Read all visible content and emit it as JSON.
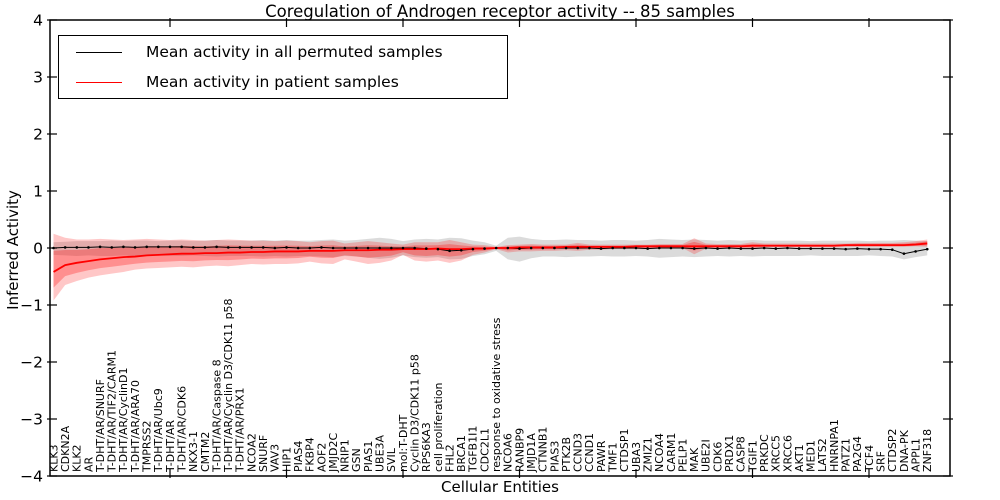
{
  "title": "Coregulation of Androgen receptor activity -- 85 samples",
  "legend": {
    "items": [
      {
        "label": "Mean activity in all permuted samples",
        "color": "#000000"
      },
      {
        "label": "Mean activity in patient samples",
        "color": "#ff0000"
      }
    ],
    "position": "upper left"
  },
  "axes": {
    "xlabel": "Cellular Entities",
    "ylabel": "Inferred Activity"
  },
  "chart_data": {
    "type": "line",
    "title": "Coregulation of Androgen receptor activity -- 85 samples",
    "xlabel": "Cellular Entities",
    "ylabel": "Inferred Activity",
    "ylim": [
      -4,
      4
    ],
    "yticks": [
      -4,
      -3,
      -2,
      -1,
      0,
      1,
      2,
      3,
      4
    ],
    "grid": false,
    "legend_position": "upper left",
    "categories": [
      "KLK3",
      "CDKN2A",
      "KLK2",
      "AR",
      "T-DHT/AR/SNURF",
      "T-DHT/AR/TIF2/CARM1",
      "T-DHT/AR/CyclinD1",
      "T-DHT/AR/ARA70",
      "TMPRSS2",
      "T-DHT/AR/Ubc9",
      "T-DHT/AR",
      "T-DHT/AR/CDK6",
      "NKX3-1",
      "CMTM2",
      "T-DHT/AR/Caspase 8",
      "T-DHT/AR/Cyclin D3/CDK11 p58",
      "T-DHT/AR/PRX1",
      "NCOA2",
      "SNURF",
      "VAV3",
      "HIP1",
      "PIAS4",
      "FKBP4",
      "AOF2",
      "JMJD2C",
      "NRIP1",
      "GSN",
      "PIAS1",
      "UBE3A",
      "SVIL",
      "mol:T-DHT",
      "Cyclin D3/CDK11 p58",
      "RPS6KA3",
      "cell proliferation",
      "FHL2",
      "BRCA1",
      "TGFB1I1",
      "CDC2L1",
      "response to oxidative stress",
      "NCOA6",
      "RANBP9",
      "JMJD1A",
      "CTNNB1",
      "PIAS3",
      "PTK2B",
      "CCND3",
      "CCND1",
      "PAWR",
      "TMF1",
      "CTDSP1",
      "UBA3",
      "ZMIZ1",
      "NCOA4",
      "CARM1",
      "PELP1",
      "MAK",
      "UBE2I",
      "CDK6",
      "PRDX1",
      "CASP8",
      "TGIF1",
      "PRKDC",
      "XRCC5",
      "XRCC6",
      "AKT1",
      "MED1",
      "LATS2",
      "HNRNPA1",
      "PATZ1",
      "PA2G4",
      "TCF4",
      "SRF",
      "CTDSP2",
      "DNA-PK",
      "APPL1",
      "ZNF318"
    ],
    "series": [
      {
        "name": "Mean activity in all permuted samples",
        "color": "#000000",
        "style": "line-with-dot-markers",
        "values": [
          0.0,
          0.01,
          0.01,
          0.01,
          0.02,
          0.01,
          0.02,
          0.01,
          0.02,
          0.02,
          0.02,
          0.02,
          0.01,
          0.01,
          0.02,
          0.01,
          0.01,
          0.01,
          0.01,
          0.0,
          0.01,
          0.0,
          0.0,
          0.01,
          0.0,
          0.0,
          0.0,
          0.0,
          0.0,
          0.0,
          0.0,
          0.0,
          -0.01,
          -0.02,
          -0.05,
          -0.04,
          -0.02,
          -0.01,
          0.0,
          0.0,
          -0.01,
          0.0,
          0.0,
          0.0,
          0.0,
          0.0,
          0.0,
          -0.01,
          0.0,
          0.0,
          0.0,
          -0.01,
          0.0,
          0.0,
          0.0,
          -0.01,
          0.0,
          -0.01,
          0.0,
          -0.01,
          -0.01,
          0.0,
          -0.01,
          0.0,
          -0.01,
          -0.01,
          -0.01,
          -0.01,
          -0.02,
          -0.01,
          -0.02,
          -0.02,
          -0.03,
          -0.1,
          -0.06,
          -0.02
        ]
      },
      {
        "name": "Mean activity in patient samples",
        "color": "#ff0000",
        "style": "line",
        "values": [
          -0.42,
          -0.3,
          -0.26,
          -0.23,
          -0.2,
          -0.18,
          -0.16,
          -0.15,
          -0.13,
          -0.12,
          -0.11,
          -0.1,
          -0.1,
          -0.09,
          -0.09,
          -0.08,
          -0.08,
          -0.07,
          -0.07,
          -0.06,
          -0.06,
          -0.06,
          -0.05,
          -0.05,
          -0.05,
          -0.04,
          -0.04,
          -0.04,
          -0.03,
          -0.03,
          -0.02,
          -0.02,
          -0.02,
          -0.01,
          -0.02,
          -0.02,
          -0.01,
          -0.01,
          0.0,
          0.0,
          0.01,
          0.01,
          0.01,
          0.01,
          0.02,
          0.02,
          0.02,
          0.02,
          0.02,
          0.02,
          0.03,
          0.03,
          0.03,
          0.03,
          0.03,
          0.03,
          0.03,
          0.03,
          0.03,
          0.03,
          0.04,
          0.04,
          0.04,
          0.04,
          0.04,
          0.04,
          0.04,
          0.04,
          0.05,
          0.05,
          0.05,
          0.05,
          0.05,
          0.05,
          0.06,
          0.08
        ]
      }
    ],
    "bands": [
      {
        "name": "permuted-range",
        "color": "#b0b0b0",
        "opacity": 0.45,
        "high": [
          0.1,
          0.11,
          0.12,
          0.12,
          0.12,
          0.13,
          0.12,
          0.13,
          0.13,
          0.12,
          0.13,
          0.13,
          0.12,
          0.13,
          0.14,
          0.13,
          0.13,
          0.13,
          0.14,
          0.13,
          0.14,
          0.13,
          0.13,
          0.14,
          0.15,
          0.13,
          0.14,
          0.16,
          0.18,
          0.16,
          0.12,
          0.15,
          0.16,
          0.15,
          0.18,
          0.17,
          0.13,
          0.1,
          0.04,
          0.18,
          0.2,
          0.16,
          0.14,
          0.14,
          0.15,
          0.14,
          0.14,
          0.13,
          0.14,
          0.14,
          0.13,
          0.14,
          0.16,
          0.15,
          0.14,
          0.15,
          0.14,
          0.13,
          0.14,
          0.13,
          0.14,
          0.13,
          0.13,
          0.13,
          0.13,
          0.12,
          0.13,
          0.13,
          0.13,
          0.13,
          0.12,
          0.13,
          0.13,
          0.14,
          0.13,
          0.12
        ],
        "low": [
          -0.12,
          -0.13,
          -0.14,
          -0.13,
          -0.14,
          -0.14,
          -0.13,
          -0.14,
          -0.14,
          -0.13,
          -0.14,
          -0.14,
          -0.13,
          -0.14,
          -0.15,
          -0.14,
          -0.14,
          -0.14,
          -0.15,
          -0.14,
          -0.15,
          -0.14,
          -0.14,
          -0.15,
          -0.16,
          -0.14,
          -0.15,
          -0.17,
          -0.19,
          -0.17,
          -0.13,
          -0.16,
          -0.17,
          -0.16,
          -0.2,
          -0.19,
          -0.14,
          -0.11,
          -0.05,
          -0.2,
          -0.24,
          -0.18,
          -0.15,
          -0.15,
          -0.16,
          -0.15,
          -0.15,
          -0.14,
          -0.15,
          -0.15,
          -0.14,
          -0.15,
          -0.17,
          -0.16,
          -0.15,
          -0.16,
          -0.15,
          -0.14,
          -0.15,
          -0.14,
          -0.15,
          -0.14,
          -0.14,
          -0.14,
          -0.14,
          -0.13,
          -0.14,
          -0.14,
          -0.14,
          -0.14,
          -0.13,
          -0.14,
          -0.15,
          -0.2,
          -0.16,
          -0.13
        ]
      },
      {
        "name": "patient-range-outer",
        "color": "#ff0000",
        "opacity": 0.22,
        "high": [
          0.25,
          0.18,
          0.15,
          0.15,
          0.16,
          0.15,
          0.14,
          0.15,
          0.16,
          0.15,
          0.14,
          0.15,
          0.14,
          0.13,
          0.14,
          0.15,
          0.14,
          0.13,
          0.13,
          0.12,
          0.13,
          0.12,
          0.1,
          0.12,
          0.13,
          0.08,
          0.1,
          0.12,
          0.1,
          0.08,
          0.06,
          0.1,
          0.1,
          0.1,
          0.14,
          0.1,
          0.06,
          0.05,
          0.02,
          0.05,
          0.06,
          0.07,
          0.06,
          0.06,
          0.06,
          0.09,
          0.06,
          0.06,
          0.06,
          0.06,
          0.06,
          0.06,
          0.07,
          0.07,
          0.07,
          0.17,
          0.08,
          0.07,
          0.07,
          0.07,
          0.1,
          0.08,
          0.08,
          0.08,
          0.08,
          0.08,
          0.08,
          0.08,
          0.08,
          0.09,
          0.09,
          0.09,
          0.09,
          0.1,
          0.12,
          0.15
        ],
        "low": [
          -0.92,
          -0.65,
          -0.58,
          -0.52,
          -0.48,
          -0.45,
          -0.42,
          -0.38,
          -0.36,
          -0.35,
          -0.34,
          -0.33,
          -0.34,
          -0.32,
          -0.31,
          -0.32,
          -0.3,
          -0.28,
          -0.29,
          -0.28,
          -0.28,
          -0.27,
          -0.24,
          -0.27,
          -0.28,
          -0.2,
          -0.24,
          -0.28,
          -0.26,
          -0.22,
          -0.12,
          -0.22,
          -0.24,
          -0.22,
          -0.26,
          -0.22,
          -0.12,
          -0.08,
          -0.02,
          -0.08,
          -0.06,
          -0.06,
          -0.05,
          -0.05,
          -0.04,
          -0.05,
          -0.03,
          -0.03,
          -0.02,
          -0.02,
          -0.02,
          -0.02,
          -0.01,
          -0.01,
          0.0,
          -0.11,
          -0.01,
          0.0,
          0.0,
          0.0,
          -0.02,
          0.01,
          0.01,
          0.01,
          0.01,
          0.01,
          0.01,
          0.01,
          0.02,
          0.02,
          0.02,
          0.02,
          0.02,
          0.02,
          0.03,
          0.02
        ]
      },
      {
        "name": "patient-range-inner",
        "color": "#ff0000",
        "opacity": 0.28,
        "derived_from_series": 1,
        "outer_band": 1,
        "fraction": 0.55
      }
    ]
  }
}
